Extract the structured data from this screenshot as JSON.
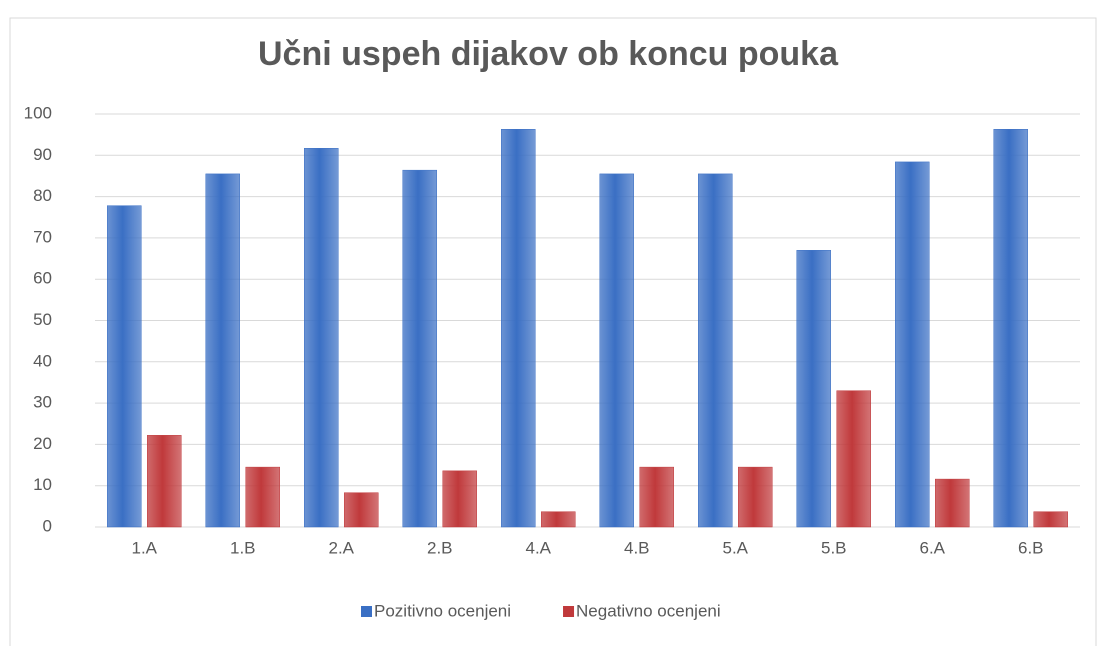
{
  "chart_data": {
    "type": "bar",
    "title": "Učni uspeh dijakov ob koncu pouka",
    "categories": [
      "1.A",
      "1.B",
      "2.A",
      "2.B",
      "4.A",
      "4.B",
      "5.A",
      "5.B",
      "6.A",
      "6.B"
    ],
    "series": [
      {
        "name": "Pozitivno ocenjeni",
        "color": "#3a6fc4",
        "values": [
          77.8,
          85.5,
          91.7,
          86.4,
          96.3,
          85.5,
          85.5,
          67,
          88.4,
          96.3
        ]
      },
      {
        "name": "Negativno ocenjeni",
        "color": "#c0393b",
        "values": [
          22.2,
          14.5,
          8.3,
          13.6,
          3.7,
          14.5,
          14.5,
          33,
          11.6,
          3.7
        ]
      }
    ],
    "ylim": [
      0,
      100
    ],
    "yticks": [
      0,
      10,
      20,
      30,
      40,
      50,
      60,
      70,
      80,
      90,
      100
    ],
    "grid": true,
    "legend": "bottom"
  }
}
